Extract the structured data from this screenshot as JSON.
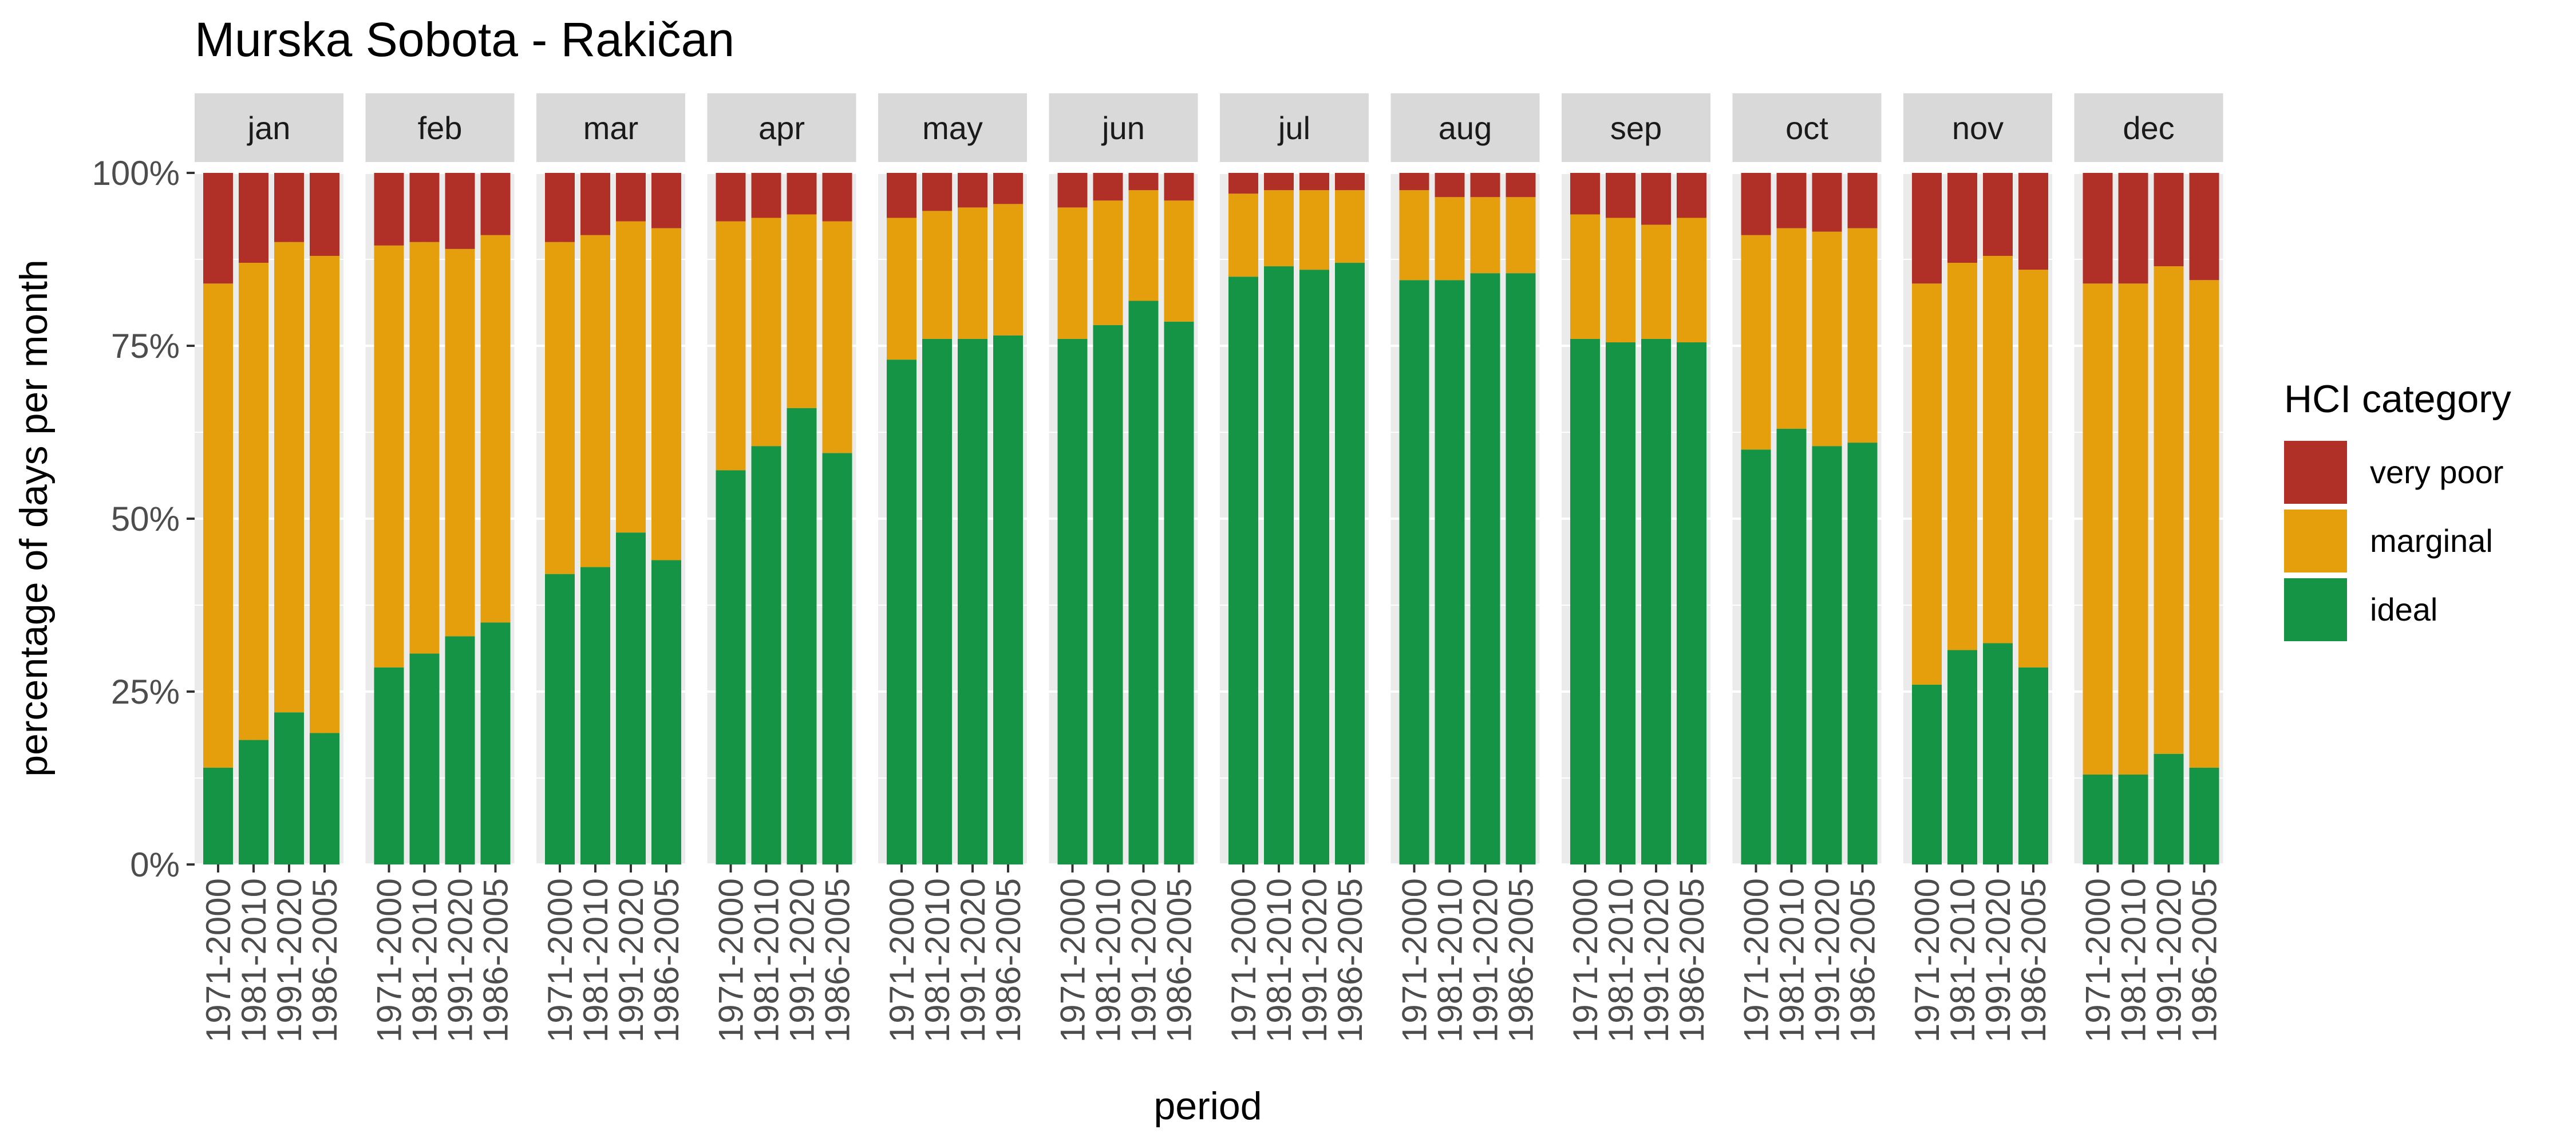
{
  "chart_data": {
    "type": "bar",
    "stacked": true,
    "faceted": true,
    "title": "Murska Sobota - Rakičan",
    "xlabel": "period",
    "ylabel": "percentage of days per month",
    "ylim": [
      0,
      100
    ],
    "yticks": [
      "0%",
      "25%",
      "50%",
      "75%",
      "100%"
    ],
    "ytick_values": [
      0,
      25,
      50,
      75,
      100
    ],
    "grid": true,
    "legend": {
      "title": "HCI category",
      "position": "right",
      "entries": [
        {
          "label": "very poor",
          "color": "#b03027"
        },
        {
          "label": "marginal",
          "color": "#e59e0c"
        },
        {
          "label": "ideal",
          "color": "#159445"
        }
      ]
    },
    "colors": {
      "ideal": "#159445",
      "marginal": "#e59e0c",
      "very_poor": "#b03027",
      "panel_bg": "#ebebeb",
      "strip_bg": "#d9d9d9"
    },
    "categories": [
      "1971-2000",
      "1981-2010",
      "1991-2020",
      "1986-2005"
    ],
    "panels": [
      {
        "month": "jan",
        "ideal": [
          14,
          18,
          22,
          19
        ],
        "marginal": [
          70,
          69,
          68,
          69
        ],
        "very_poor": [
          16,
          13,
          10,
          12
        ]
      },
      {
        "month": "feb",
        "ideal": [
          28.5,
          30.5,
          33,
          35
        ],
        "marginal": [
          61,
          59.5,
          56,
          56
        ],
        "very_poor": [
          10.5,
          10,
          11,
          9
        ]
      },
      {
        "month": "mar",
        "ideal": [
          42,
          43,
          48,
          44
        ],
        "marginal": [
          48,
          48,
          45,
          48
        ],
        "very_poor": [
          10,
          9,
          7,
          8
        ]
      },
      {
        "month": "apr",
        "ideal": [
          57,
          60.5,
          66,
          59.5
        ],
        "marginal": [
          36,
          33,
          28,
          33.5
        ],
        "very_poor": [
          7,
          6.5,
          6,
          7
        ]
      },
      {
        "month": "may",
        "ideal": [
          73,
          76,
          76,
          76.5
        ],
        "marginal": [
          20.5,
          18.5,
          19,
          19
        ],
        "very_poor": [
          6.5,
          5.5,
          5,
          4.5
        ]
      },
      {
        "month": "jun",
        "ideal": [
          76,
          78,
          81.5,
          78.5
        ],
        "marginal": [
          19,
          18,
          16,
          17.5
        ],
        "very_poor": [
          5,
          4,
          2.5,
          4
        ]
      },
      {
        "month": "jul",
        "ideal": [
          85,
          86.5,
          86,
          87
        ],
        "marginal": [
          12,
          11,
          11.5,
          10.5
        ],
        "very_poor": [
          3,
          2.5,
          2.5,
          2.5
        ]
      },
      {
        "month": "aug",
        "ideal": [
          84.5,
          84.5,
          85.5,
          85.5
        ],
        "marginal": [
          13,
          12,
          11,
          11
        ],
        "very_poor": [
          2.5,
          3.5,
          3.5,
          3.5
        ]
      },
      {
        "month": "sep",
        "ideal": [
          76,
          75.5,
          76,
          75.5
        ],
        "marginal": [
          18,
          18,
          16.5,
          18
        ],
        "very_poor": [
          6,
          6.5,
          7.5,
          6.5
        ]
      },
      {
        "month": "oct",
        "ideal": [
          60,
          63,
          60.5,
          61
        ],
        "marginal": [
          31,
          29,
          31,
          31
        ],
        "very_poor": [
          9,
          8,
          8.5,
          8
        ]
      },
      {
        "month": "nov",
        "ideal": [
          26,
          31,
          32,
          28.5
        ],
        "marginal": [
          58,
          56,
          56,
          57.5
        ],
        "very_poor": [
          16,
          13,
          12,
          14
        ]
      },
      {
        "month": "dec",
        "ideal": [
          13,
          13,
          16,
          14
        ],
        "marginal": [
          71,
          71,
          70.5,
          70.5
        ],
        "very_poor": [
          16,
          16,
          13.5,
          15.5
        ]
      }
    ]
  }
}
